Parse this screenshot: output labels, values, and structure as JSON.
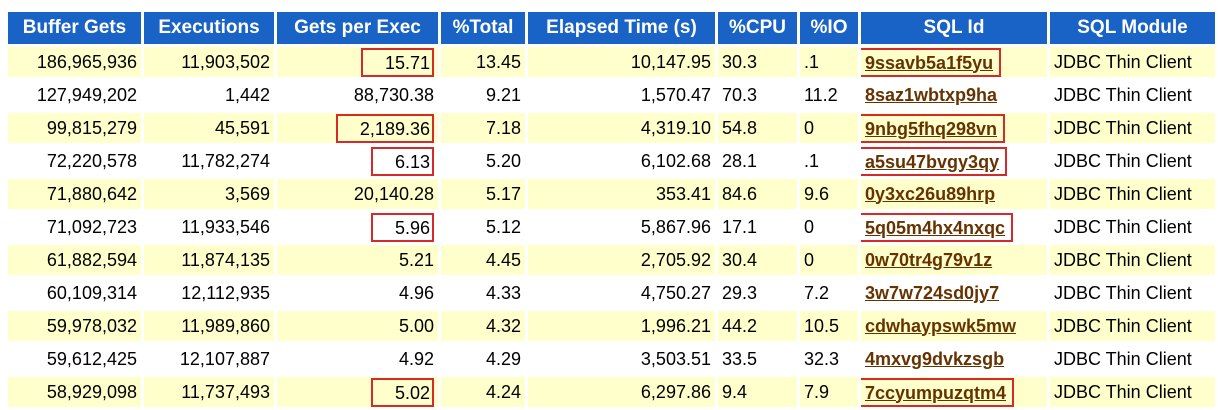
{
  "table": {
    "header": [
      "Buffer Gets",
      "Executions",
      "Gets per Exec",
      "%Total",
      "Elapsed Time (s)",
      "%CPU",
      "%IO",
      "SQL Id",
      "SQL Module"
    ],
    "rows": [
      [
        "186,965,936",
        "11,903,502",
        "15.71",
        "13.45",
        "10,147.95",
        "30.3",
        ".1",
        "9ssavb5a1f5yu",
        "JDBC Thin Client"
      ],
      [
        "127,949,202",
        "1,442",
        "88,730.38",
        "9.21",
        "1,570.47",
        "70.3",
        "11.2",
        "8saz1wbtxp9ha",
        "JDBC Thin Client"
      ],
      [
        "99,815,279",
        "45,591",
        "2,189.36",
        "7.18",
        "4,319.10",
        "54.8",
        "0",
        "9nbg5fhq298vn",
        "JDBC Thin Client"
      ],
      [
        "72,220,578",
        "11,782,274",
        "6.13",
        "5.20",
        "6,102.68",
        "28.1",
        ".1",
        "a5su47bvgy3qy",
        "JDBC Thin Client"
      ],
      [
        "71,880,642",
        "3,569",
        "20,140.28",
        "5.17",
        "353.41",
        "84.6",
        "9.6",
        "0y3xc26u89hrp",
        "JDBC Thin Client"
      ],
      [
        "71,092,723",
        "11,933,546",
        "5.96",
        "5.12",
        "5,867.96",
        "17.1",
        "0",
        "5q05m4hx4nxqc",
        "JDBC Thin Client"
      ],
      [
        "61,882,594",
        "11,874,135",
        "5.21",
        "4.45",
        "2,705.92",
        "30.4",
        "0",
        "0w70tr4g79v1z",
        "JDBC Thin Client"
      ],
      [
        "60,109,314",
        "12,112,935",
        "4.96",
        "4.33",
        "4,750.27",
        "29.3",
        "7.2",
        "3w7w724sd0jy7",
        "JDBC Thin Client"
      ],
      [
        "59,978,032",
        "11,989,860",
        "5.00",
        "4.32",
        "1,996.21",
        "44.2",
        "10.5",
        "cdwhaypswk5mw",
        "JDBC Thin Client"
      ],
      [
        "59,612,425",
        "12,107,887",
        "4.92",
        "4.29",
        "3,503.51",
        "33.5",
        "32.3",
        "4mxvg9dvkzsgb",
        "JDBC Thin Client"
      ],
      [
        "58,929,098",
        "11,737,493",
        "5.02",
        "4.24",
        "6,297.86",
        "9.4",
        "7.9",
        "7ccyumpuzqtm4",
        "JDBC Thin Client"
      ]
    ]
  }
}
